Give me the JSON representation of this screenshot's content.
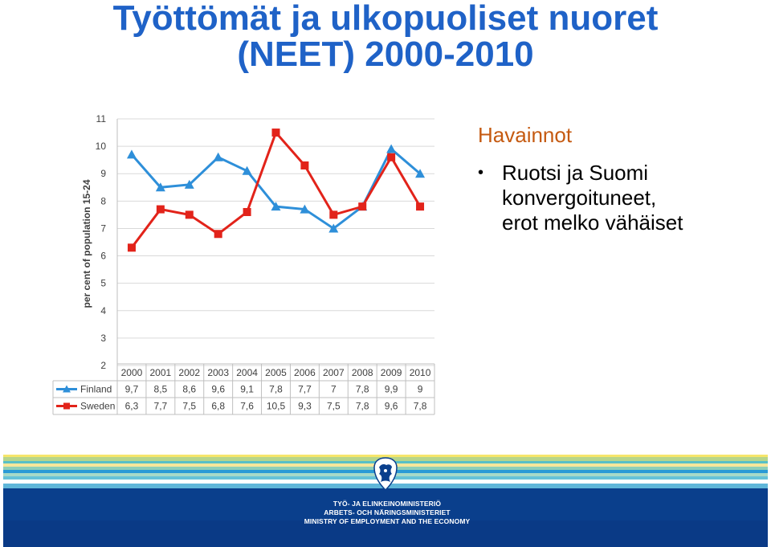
{
  "title": {
    "line1": "Työttömät ja ulkopuoliset nuoret",
    "line2": "(NEET) 2000-2010"
  },
  "observations": {
    "heading": "Havainnot",
    "bullet_lines": [
      "Ruotsi ja Suomi",
      "konvergoituneet,",
      "erot melko vähäiset"
    ]
  },
  "footer": {
    "ministry_fi": "TYÖ- JA ELINKEINOMINISTERIÖ",
    "ministry_sv": "ARBETS- OCH NÄRINGSMINISTERIET",
    "ministry_en": "MINISTRY OF EMPLOYMENT AND THE ECONOMY",
    "logo_icon": "finnish-lion-crest-icon",
    "colors": {
      "accent_red": "#e2231a",
      "accent_blue": "#1f62c7",
      "stripes": [
        "#f6e56b",
        "#b6d58b",
        "#58c0c7",
        "#f8e79a",
        "#8fcfb7",
        "#2a9ad6",
        "#a6d9c8",
        "#66c2d8",
        "#ffffff",
        "#5fb6d9",
        "#0a3f8c",
        "#0a3a86"
      ]
    }
  },
  "chart_data": {
    "type": "line",
    "title": "",
    "xlabel": "",
    "ylabel": "per cent of population 15-24",
    "ylim": [
      2,
      11
    ],
    "yticks": [
      2,
      3,
      4,
      5,
      6,
      7,
      8,
      9,
      10,
      11
    ],
    "grid": true,
    "legend": "table-below",
    "categories": [
      "2000",
      "2001",
      "2002",
      "2003",
      "2004",
      "2005",
      "2006",
      "2007",
      "2008",
      "2009",
      "2010"
    ],
    "series": [
      {
        "name": "Finland",
        "values": [
          9.7,
          8.5,
          8.6,
          9.6,
          9.1,
          7.8,
          7.7,
          7.0,
          7.8,
          9.9,
          9.0
        ],
        "labels": [
          "9,7",
          "8,5",
          "8,6",
          "9,6",
          "9,1",
          "7,8",
          "7,7",
          "7",
          "7,8",
          "9,9",
          "9"
        ],
        "color": "#2e8fd9",
        "marker": "triangle"
      },
      {
        "name": "Sweden",
        "values": [
          6.3,
          7.7,
          7.5,
          6.8,
          7.6,
          10.5,
          9.3,
          7.5,
          7.8,
          9.6,
          7.8
        ],
        "labels": [
          "6,3",
          "7,7",
          "7,5",
          "6,8",
          "7,6",
          "10,5",
          "9,3",
          "7,5",
          "7,8",
          "9,6",
          "7,8"
        ],
        "color": "#e2231a",
        "marker": "square"
      }
    ]
  }
}
